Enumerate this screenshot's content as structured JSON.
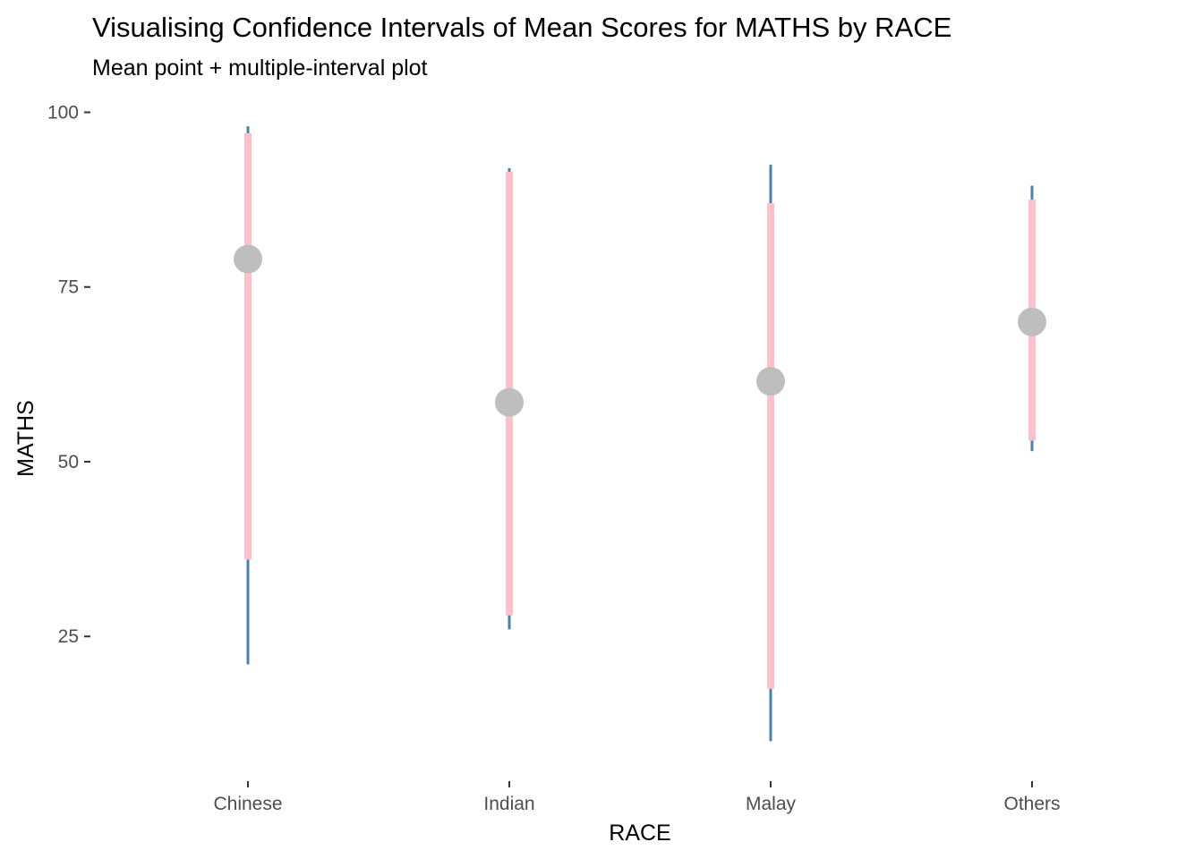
{
  "chart_data": {
    "type": "interval",
    "title": "Visualising Confidence Intervals of Mean Scores for MATHS by RACE",
    "subtitle": "Mean point + multiple-interval plot",
    "xlabel": "RACE",
    "ylabel": "MATHS",
    "categories": [
      "Chinese",
      "Indian",
      "Malay",
      "Others"
    ],
    "yticks": [
      25,
      50,
      75,
      100
    ],
    "ylim": [
      8,
      100
    ],
    "grid": false,
    "legend": "none",
    "series": [
      {
        "name": "",
        "category": "Chinese",
        "mean": 79,
        "outer_interval": [
          21,
          98
        ],
        "inner_interval": [
          36,
          97
        ]
      },
      {
        "name": "",
        "category": "Indian",
        "mean": 58.5,
        "outer_interval": [
          26,
          92
        ],
        "inner_interval": [
          28,
          91.5
        ]
      },
      {
        "name": "",
        "category": "Malay",
        "mean": 61.5,
        "outer_interval": [
          10,
          92.5
        ],
        "inner_interval": [
          17.5,
          87
        ]
      },
      {
        "name": "",
        "category": "Others",
        "mean": 70,
        "outer_interval": [
          51.5,
          89.5
        ],
        "inner_interval": [
          53,
          87.5
        ]
      }
    ],
    "colors": {
      "outer_interval": "#4682b4",
      "inner_interval": "#ffc0cb",
      "mean_point": "#bebebe"
    }
  }
}
